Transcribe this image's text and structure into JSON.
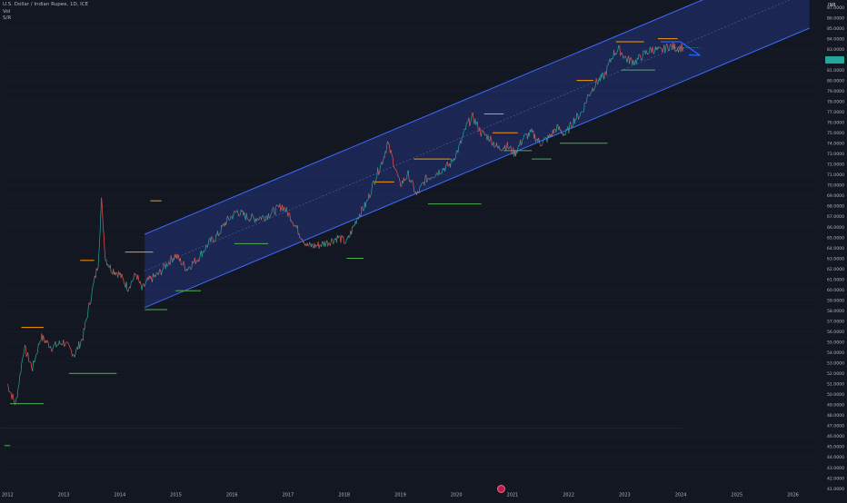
{
  "header": {
    "symbol_title": "U.S. Dollar / Indian Rupee, 1D, ICE",
    "vol_label": "Vol",
    "sr_label": "S/R"
  },
  "axis": {
    "currency": "INR"
  },
  "chart_data": {
    "type": "line",
    "title": "U.S. Dollar / Indian Rupee, 1D, ICE",
    "x_tick_labels": [
      "2012",
      "2013",
      "2014",
      "2015",
      "2016",
      "2017",
      "2018",
      "2019",
      "2020",
      "2021",
      "2022",
      "2023",
      "2024",
      "2025",
      "2026"
    ],
    "y_tick_labels": [
      "87.0000",
      "86.0000",
      "85.0000",
      "84.0000",
      "83.0000",
      "82.0000",
      "81.0000",
      "80.0000",
      "79.0000",
      "78.0000",
      "77.0000",
      "76.0000",
      "75.0000",
      "74.0000",
      "73.0000",
      "72.0000",
      "71.0000",
      "70.0000",
      "69.0000",
      "68.0000",
      "67.0000",
      "66.0000",
      "65.0000",
      "64.0000",
      "63.0000",
      "62.0000",
      "61.0000",
      "60.0000",
      "59.0000",
      "58.0000",
      "57.0000",
      "56.0000",
      "55.0000",
      "54.0000",
      "53.0000",
      "52.0000",
      "51.0000",
      "50.0000",
      "49.0000",
      "48.0000",
      "47.0000",
      "46.0000",
      "45.0000",
      "44.0000",
      "43.0000",
      "42.0000",
      "41.0000"
    ],
    "ylim": [
      41,
      87
    ],
    "xlim": [
      2012.0,
      2026.5
    ],
    "series": [
      {
        "x": [
          2012.0,
          2012.15,
          2012.3,
          2012.45,
          2012.6,
          2012.8,
          2013.0,
          2013.2,
          2013.35,
          2013.5,
          2013.62,
          2013.68,
          2013.75,
          2013.85,
          2014.0,
          2014.15,
          2014.3,
          2014.4,
          2014.5,
          2014.7,
          2014.85,
          2015.0,
          2015.2,
          2015.4,
          2015.6,
          2015.75,
          2015.9,
          2016.1,
          2016.25,
          2016.4,
          2016.6,
          2016.75,
          2016.9,
          2017.05,
          2017.2,
          2017.35,
          2017.5,
          2017.7,
          2017.9,
          2018.05,
          2018.25,
          2018.4,
          2018.55,
          2018.7,
          2018.78,
          2018.9,
          2019.0,
          2019.15,
          2019.3,
          2019.45,
          2019.6,
          2019.75,
          2019.9,
          2020.05,
          2020.2,
          2020.3,
          2020.45,
          2020.6,
          2020.75,
          2020.9,
          2021.05,
          2021.2,
          2021.35,
          2021.5,
          2021.65,
          2021.8,
          2021.95,
          2022.1,
          2022.25,
          2022.35,
          2022.5,
          2022.65,
          2022.8,
          2022.9,
          2023.05,
          2023.2,
          2023.35,
          2023.5,
          2023.65,
          2023.8,
          2023.95,
          2024.05
        ],
        "y": [
          51.0,
          49.0,
          54.5,
          52.5,
          55.5,
          54.5,
          55.0,
          53.8,
          55.5,
          59.5,
          62.5,
          68.5,
          63.0,
          62.0,
          61.5,
          60.2,
          61.5,
          60.0,
          60.8,
          61.5,
          62.5,
          63.3,
          62.0,
          63.0,
          64.5,
          65.2,
          66.5,
          67.5,
          67.0,
          66.8,
          67.0,
          67.5,
          68.0,
          67.0,
          65.5,
          64.2,
          64.2,
          64.5,
          65.0,
          64.5,
          67.0,
          68.2,
          70.5,
          72.5,
          74.0,
          72.0,
          70.0,
          71.0,
          69.0,
          70.5,
          71.0,
          71.5,
          72.0,
          73.5,
          75.8,
          76.5,
          75.0,
          74.5,
          73.5,
          73.8,
          73.0,
          74.5,
          75.0,
          74.0,
          74.5,
          75.5,
          74.8,
          76.2,
          77.0,
          78.5,
          79.8,
          80.5,
          82.5,
          83.0,
          82.0,
          81.8,
          82.5,
          83.0,
          82.8,
          83.3,
          83.1,
          83.2
        ]
      }
    ],
    "channel": {
      "start": {
        "x": 2014.45,
        "y": 58.3
      },
      "end": {
        "x": 2026.3,
        "y": 85.0
      },
      "band_width": 7.0
    },
    "resistance_levels": [
      {
        "y": 56.4,
        "x_from": 2012.25,
        "x_to": 2012.65
      },
      {
        "y": 62.8,
        "x_from": 2013.3,
        "x_to": 2013.55
      },
      {
        "y": 63.6,
        "x_from": 2014.1,
        "x_to": 2014.6
      },
      {
        "y": 68.5,
        "x_from": 2014.55,
        "x_to": 2014.75
      },
      {
        "y": 70.3,
        "x_from": 2018.55,
        "x_to": 2018.9
      },
      {
        "y": 72.5,
        "x_from": 2019.25,
        "x_to": 2019.9
      },
      {
        "y": 75.0,
        "x_from": 2020.65,
        "x_to": 2021.1
      },
      {
        "y": 76.8,
        "x_from": 2020.5,
        "x_to": 2020.85
      },
      {
        "y": 80.0,
        "x_from": 2022.15,
        "x_to": 2022.45
      },
      {
        "y": 83.7,
        "x_from": 2022.85,
        "x_to": 2023.35
      },
      {
        "y": 84.0,
        "x_from": 2023.6,
        "x_to": 2023.95
      }
    ],
    "support_levels": [
      {
        "y": 49.1,
        "x_from": 2012.05,
        "x_to": 2012.65
      },
      {
        "y": 52.0,
        "x_from": 2013.1,
        "x_to": 2013.95
      },
      {
        "y": 58.1,
        "x_from": 2014.45,
        "x_to": 2014.85
      },
      {
        "y": 59.9,
        "x_from": 2015.0,
        "x_to": 2015.45
      },
      {
        "y": 64.4,
        "x_from": 2016.05,
        "x_to": 2016.65
      },
      {
        "y": 63.0,
        "x_from": 2018.05,
        "x_to": 2018.35
      },
      {
        "y": 68.2,
        "x_from": 2019.5,
        "x_to": 2020.45
      },
      {
        "y": 73.3,
        "x_from": 2020.85,
        "x_to": 2021.35
      },
      {
        "y": 72.5,
        "x_from": 2021.35,
        "x_to": 2021.7
      },
      {
        "y": 74.0,
        "x_from": 2021.85,
        "x_to": 2022.7
      },
      {
        "y": 81.0,
        "x_from": 2022.95,
        "x_to": 2023.55
      },
      {
        "y": 45.1,
        "x_from": 2011.95,
        "x_to": 2012.05
      }
    ],
    "projection_arrow": {
      "points": [
        {
          "x": 2023.65,
          "y": 83.7
        },
        {
          "x": 2024.0,
          "y": 83.7
        },
        {
          "x": 2024.35,
          "y": 82.4
        }
      ],
      "head_lines": [
        {
          "x1": 2024.35,
          "y1": 82.4,
          "x2": 2024.15,
          "y2": 82.45
        },
        {
          "x1": 2024.35,
          "y1": 82.4,
          "x2": 2024.28,
          "y2": 82.65
        }
      ]
    },
    "last_price_line": {
      "y": 83.15,
      "x_from": 2023.9,
      "x_to": 2024.35
    },
    "colors": {
      "background": "#131722",
      "candle_up": "#26a69a",
      "candle_down": "#ef5350",
      "channel_fill": "#2f4cb8",
      "channel_line": "#3d6bff",
      "resistance": "#ff9800",
      "support": "#4caf50",
      "grid": "#1e222d",
      "axis_text": "#b2b5be",
      "last_price": "#26a69a"
    }
  }
}
